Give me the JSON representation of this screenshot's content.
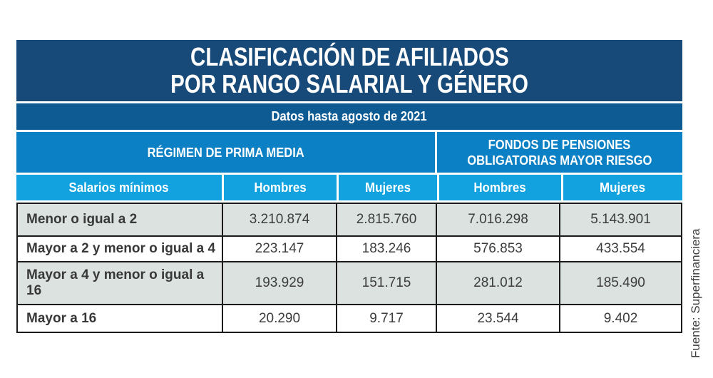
{
  "chart_data": {
    "type": "table",
    "title": "CLASIFICACIÓN DE AFILIADOS POR RANGO SALARIAL Y GÉNERO",
    "subtitle": "Datos hasta agosto de 2021",
    "column_groups": [
      "RÉGIMEN DE PRIMA MEDIA",
      "FONDOS DE PENSIONES OBLIGATORIAS MAYOR RIESGO"
    ],
    "columns": [
      "Salarios mínimos",
      "Hombres",
      "Mujeres",
      "Hombres",
      "Mujeres"
    ],
    "rows": [
      [
        "Menor o igual a 2",
        "3.210.874",
        "2.815.760",
        "7.016.298",
        "5.143.901"
      ],
      [
        "Mayor a 2 y menor o igual a 4",
        "223.147",
        "183.246",
        "576.853",
        "433.554"
      ],
      [
        "Mayor a 4 y menor o igual a 16",
        "193.929",
        "151.715",
        "281.012",
        "185.490"
      ],
      [
        "Mayor a 16",
        "20.290",
        "9.717",
        "23.544",
        "9.402"
      ]
    ],
    "source": "Fuente: Superfinanciera"
  },
  "ui": {
    "title_line1": "CLASIFICACIÓN DE AFILIADOS",
    "title_line2": "POR RANGO SALARIAL Y GÉNERO",
    "subtitle": "Datos hasta agosto de 2021",
    "group_left": "RÉGIMEN DE PRIMA MEDIA",
    "group_right_line1": "FONDOS DE PENSIONES",
    "group_right_line2": "OBLIGATORIAS MAYOR RIESGO",
    "columns": [
      "Salarios mínimos",
      "Hombres",
      "Mujeres",
      "Hombres",
      "Mujeres"
    ],
    "source": "Fuente: Superfinanciera"
  },
  "colors": {
    "title_bar": "#174a78",
    "subtitle_bar": "#0e5b94",
    "group_bar": "#0c80c4",
    "column_header_bar": "#12a2e0",
    "row_gray": "#dbe2e0",
    "row_white": "#ffffff",
    "grid_line": "#1b1b1b",
    "text_dark": "#3c3c3c",
    "text_white": "#ffffff"
  }
}
